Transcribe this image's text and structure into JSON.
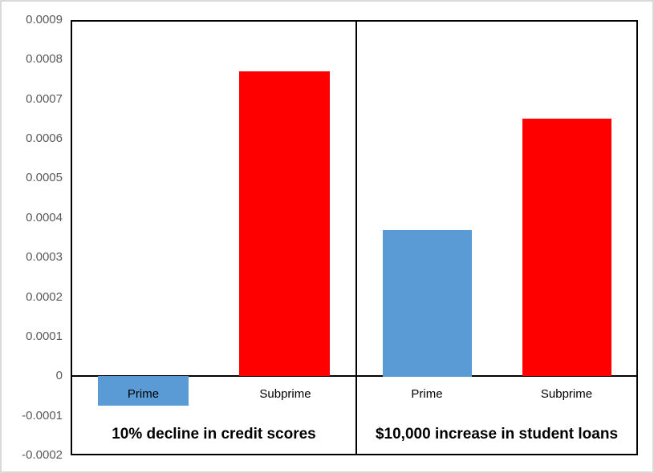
{
  "chart_data": {
    "type": "bar",
    "title": "",
    "xlabel": "",
    "ylabel": "",
    "ylim": [
      -0.0002,
      0.0009
    ],
    "ytick_values": [
      0.0009,
      0.0008,
      0.0007,
      0.0006,
      0.0005,
      0.0004,
      0.0003,
      0.0002,
      0.0001,
      0,
      -0.0001,
      -0.0002
    ],
    "ytick_labels": [
      "0.0009",
      "0.0008",
      "0.0007",
      "0.0006",
      "0.0005",
      "0.0004",
      "0.0003",
      "0.0002",
      "0.0001",
      "0",
      "-0.0001",
      "-0.0002"
    ],
    "grid": false,
    "legend_position": "none",
    "panels": [
      {
        "title": "10% decline in credit scores",
        "categories": [
          "Prime",
          "Subprime"
        ],
        "values": [
          -7.5e-05,
          0.00077
        ],
        "bar_colors": [
          "#5B9BD5",
          "#FF0000"
        ]
      },
      {
        "title": "$10,000 increase in student loans",
        "categories": [
          "Prime",
          "Subprime"
        ],
        "values": [
          0.00037,
          0.00065
        ],
        "bar_colors": [
          "#5B9BD5",
          "#FF0000"
        ]
      }
    ]
  },
  "colors": {
    "prime_bar": "#5B9BD5",
    "subprime_bar": "#FF0000",
    "axis_tick_label": "#595959",
    "frame_line": "#000000",
    "category_label": "#000000",
    "panel_title": "#000000",
    "outer_border": "#D9D9D9",
    "background": "#FFFFFF"
  }
}
